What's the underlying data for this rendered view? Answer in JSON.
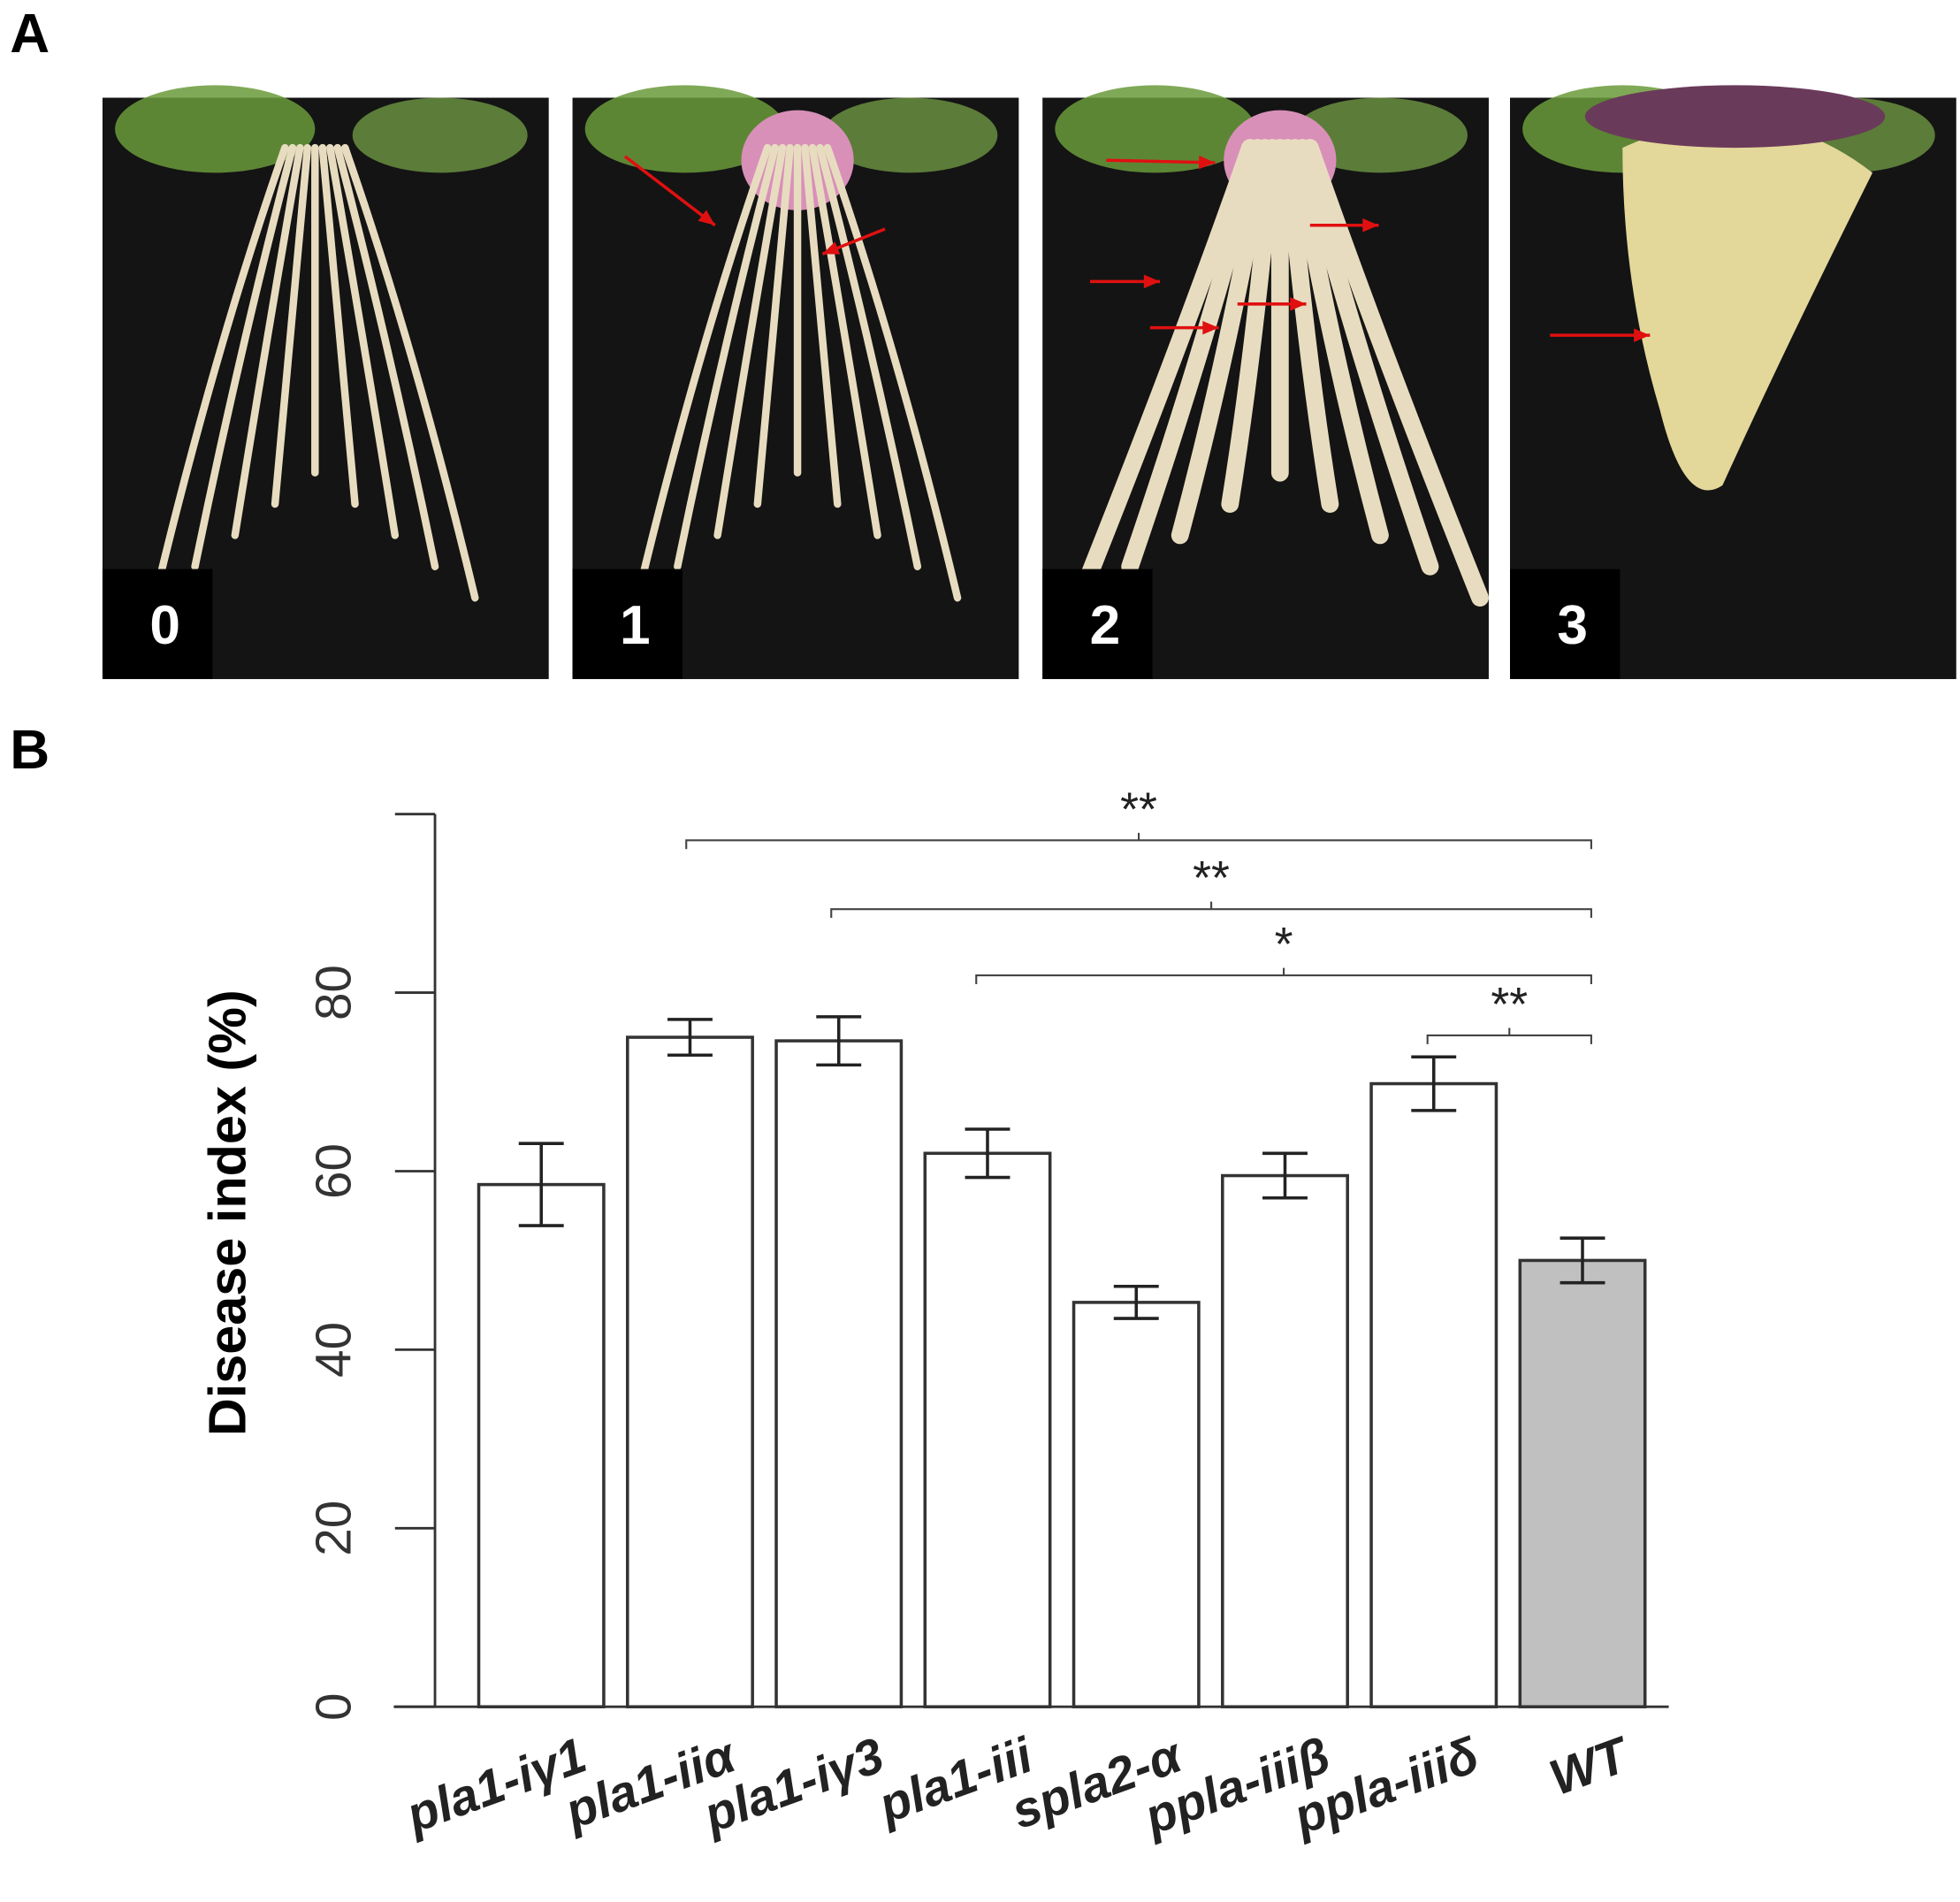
{
  "panel_labels": [
    "A",
    "B"
  ],
  "photo_scores": [
    "0",
    "1",
    "2",
    "3"
  ],
  "chart_data": {
    "type": "bar",
    "y_label": "Disease index (%)",
    "categories": [
      "pla1-iγ1",
      "pla1-iiα",
      "pla1-iγ3",
      "pla1-iii",
      "spla2-α",
      "ppla-iiiβ",
      "ppla-iiiδ",
      "WT"
    ],
    "values": [
      58.5,
      75,
      74.6,
      62,
      45.3,
      59.5,
      69.8,
      50
    ],
    "errors": [
      4.6,
      2,
      2.7,
      2.7,
      1.8,
      2.5,
      3,
      2.5
    ],
    "colors": [
      "#ffffff",
      "#ffffff",
      "#ffffff",
      "#ffffff",
      "#ffffff",
      "#ffffff",
      "#ffffff",
      "#c0c0c0"
    ],
    "ylim": [
      0,
      100
    ],
    "yticks": [
      0,
      20,
      40,
      60,
      80
    ],
    "annotations": [
      "**",
      "**",
      "*",
      "**"
    ]
  }
}
